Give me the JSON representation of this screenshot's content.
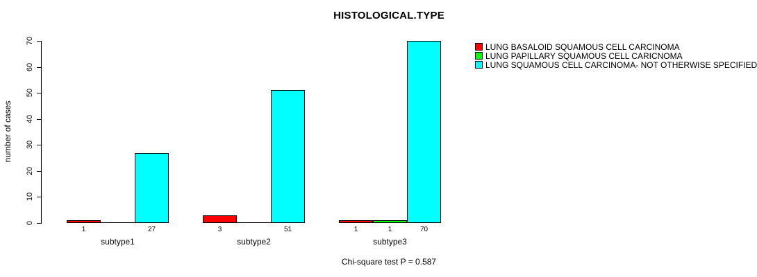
{
  "chart_data": {
    "type": "bar",
    "grouped": true,
    "title": "HISTOLOGICAL.TYPE",
    "ylabel": "number of cases",
    "xlabel": "",
    "ylim": [
      0,
      70
    ],
    "yticks": [
      0,
      10,
      20,
      30,
      40,
      50,
      60,
      70
    ],
    "grid": false,
    "legend_position": "right-outside",
    "categories": [
      "subtype1",
      "subtype2",
      "subtype3"
    ],
    "series": [
      {
        "name": "LUNG BASALOID SQUAMOUS CELL CARCINOMA",
        "color": "#ff0000",
        "values": [
          1,
          3,
          1
        ]
      },
      {
        "name": "LUNG PAPILLARY SQUAMOUS CELL CARICNOMA",
        "color": "#00ff00",
        "values": [
          0,
          0,
          1
        ]
      },
      {
        "name": "LUNG SQUAMOUS CELL CARCINOMA- NOT OTHERWISE SPECIFIED",
        "color": "#00ffff",
        "values": [
          27,
          51,
          70
        ]
      }
    ],
    "bar_labels": [
      [
        "1",
        "",
        "27"
      ],
      [
        "3",
        "",
        "51"
      ],
      [
        "1",
        "1",
        "70"
      ]
    ],
    "caption": "Chi-square test P = 0.587",
    "colors": {
      "background": "#ffffff",
      "axis": "#000000",
      "bar_border": "#000000"
    }
  }
}
